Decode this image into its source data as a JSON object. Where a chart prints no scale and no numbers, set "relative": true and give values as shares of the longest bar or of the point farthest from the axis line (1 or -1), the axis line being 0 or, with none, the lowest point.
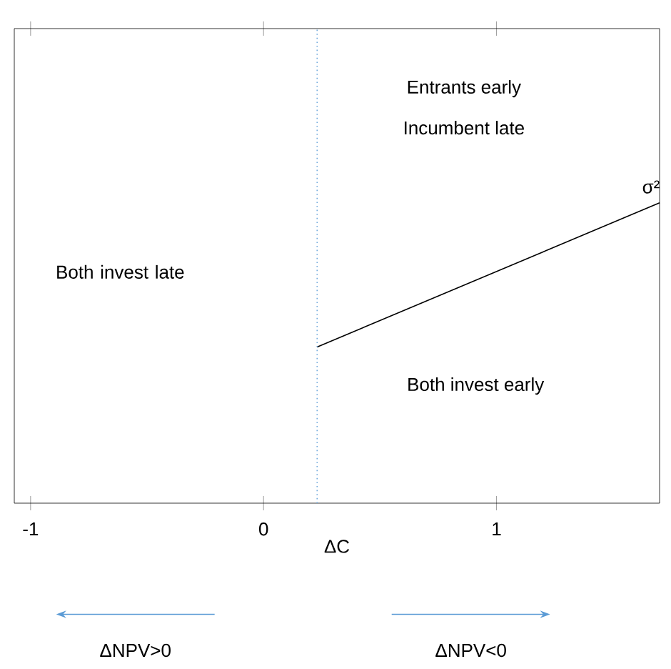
{
  "chart_data": {
    "type": "line",
    "relative": true,
    "x": [
      0.23,
      1.7
    ],
    "series": [
      {
        "color": "#000000",
        "values": [
          0.52,
          1
        ]
      }
    ],
    "xlim": [
      -1.07,
      1.7
    ],
    "xticks": [
      -1,
      0,
      1
    ],
    "xlabel": "ΔC",
    "ref_lines": [
      {
        "axis": "x",
        "value": 0.23,
        "color": "#6fa8dc",
        "line_style": "dotted"
      }
    ],
    "annotations": [
      {
        "text": "σ²",
        "x": 1.7,
        "y": 1
      },
      "Entrants early",
      "Incumbent late",
      "Both invest late",
      "Both invest early",
      "ΔNPV>0",
      "ΔNPV<0"
    ]
  }
}
